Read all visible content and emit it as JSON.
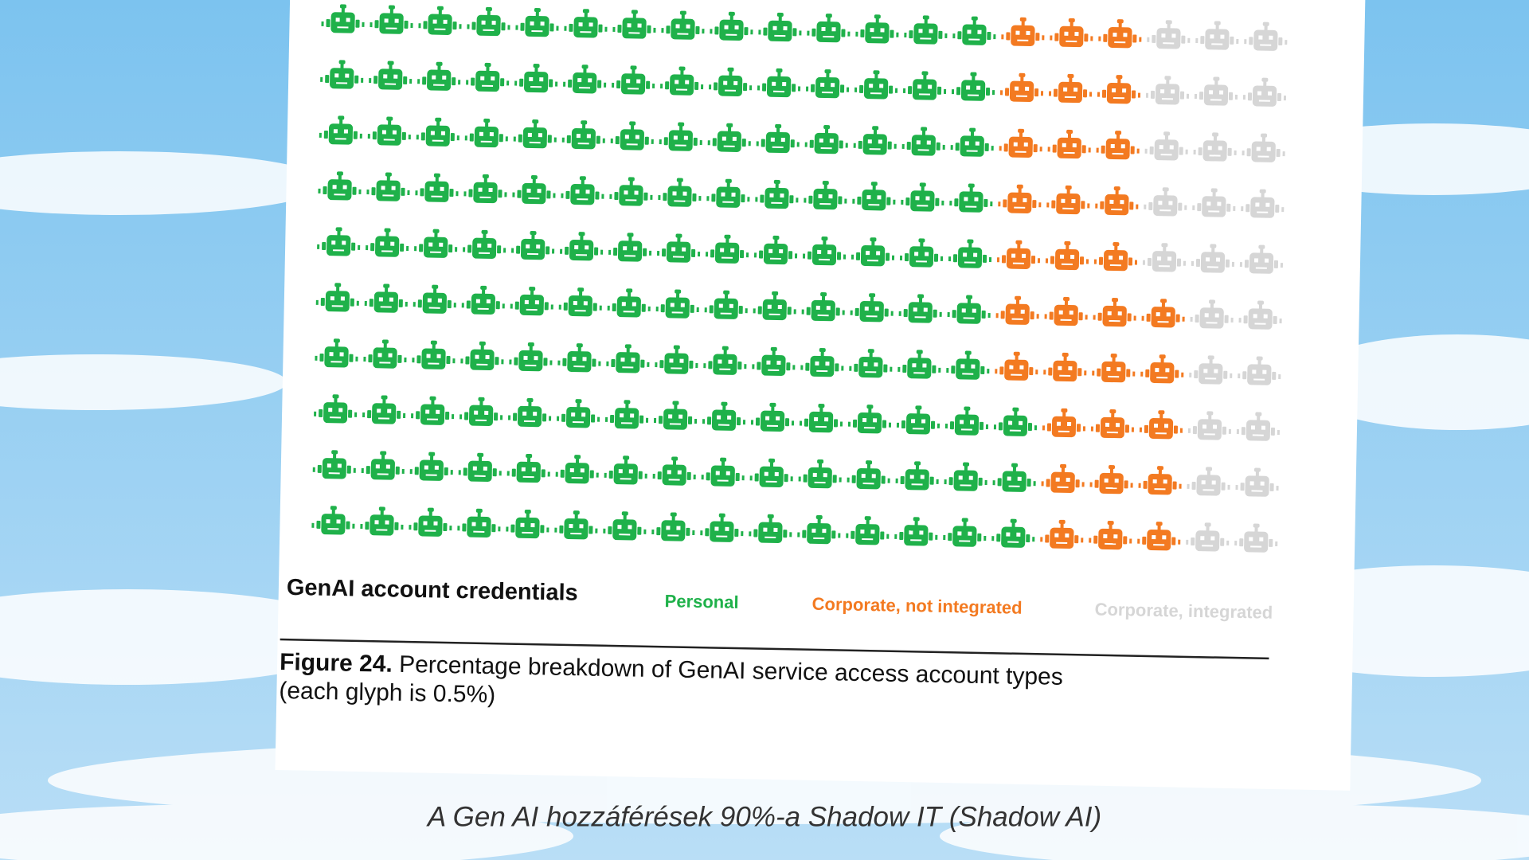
{
  "chart_data": {
    "type": "waffle",
    "legend_title": "GenAI account credentials",
    "series": [
      {
        "name": "Personal",
        "color": "#1fb14a",
        "values": [
          14,
          14,
          14,
          14,
          14,
          14,
          14,
          15,
          15,
          15
        ]
      },
      {
        "name": "Corporate, not integrated",
        "color": "#f37a21",
        "values": [
          3,
          3,
          3,
          3,
          3,
          4,
          4,
          3,
          3,
          3
        ]
      },
      {
        "name": "Corporate, integrated",
        "color": "#d6d6d6",
        "values": [
          3,
          3,
          3,
          3,
          3,
          2,
          2,
          2,
          2,
          2
        ]
      }
    ],
    "figure_label": "Figure 24.",
    "figure_text": "Percentage breakdown of GenAI service access account types",
    "figure_note": "(each glyph is 0.5%)"
  },
  "caption": "A Gen AI hozzáférések 90%-a Shadow IT (Shadow AI)"
}
